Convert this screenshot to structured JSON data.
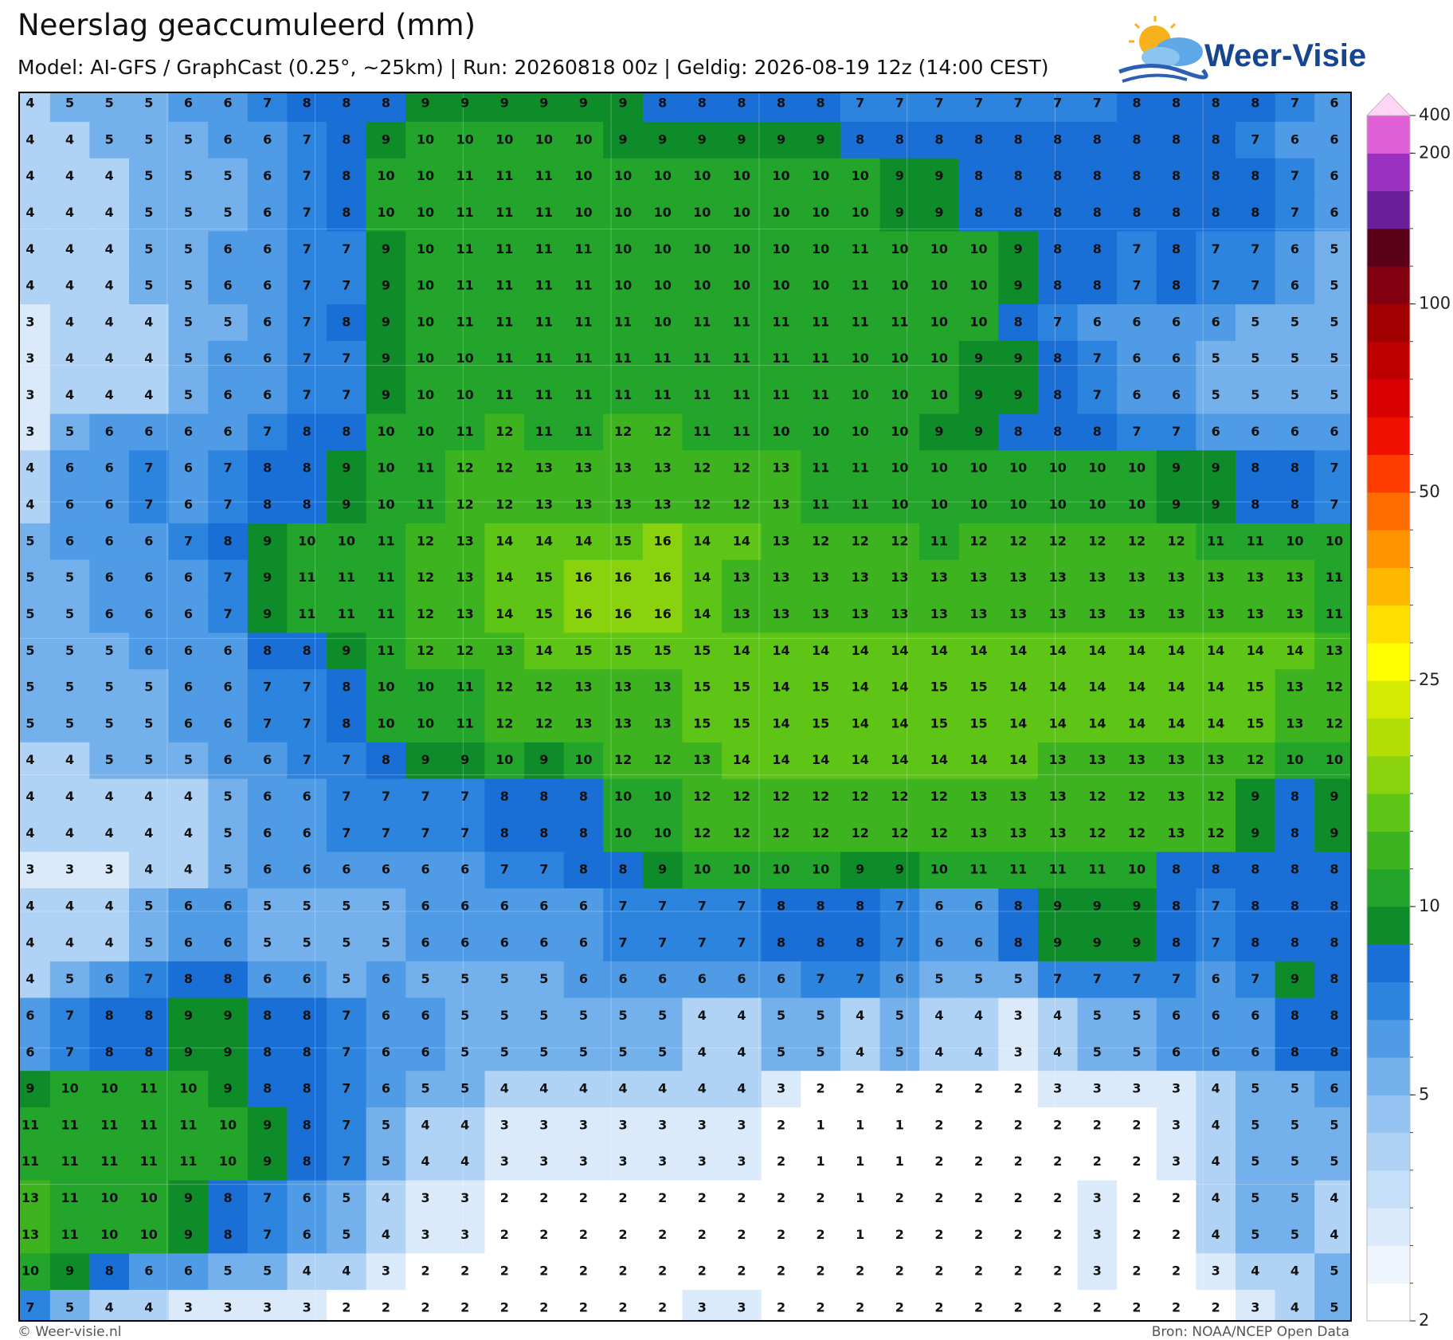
{
  "header": {
    "title": "Neerslag geaccumuleerd (mm)",
    "subtitle": "Model: AI-GFS / GraphCast (0.25°, ~25km)  |  Run: 20260818 00z  |  Geldig: 2026-08-19 12z (14:00 CEST)",
    "logo": "Weer-Visie"
  },
  "map": {
    "grid": [
      [
        4,
        5,
        5,
        5,
        6,
        6,
        7,
        8,
        8,
        8,
        9,
        9,
        9,
        9,
        9,
        9,
        8,
        8,
        8,
        8,
        8,
        7,
        7,
        7,
        7,
        7,
        7,
        7,
        8,
        8,
        8,
        8,
        7,
        6
      ],
      [
        4,
        4,
        5,
        5,
        5,
        6,
        6,
        7,
        8,
        9,
        10,
        10,
        10,
        10,
        10,
        9,
        9,
        9,
        9,
        9,
        9,
        8,
        8,
        8,
        8,
        8,
        8,
        8,
        8,
        8,
        8,
        7,
        6,
        6
      ],
      [
        4,
        4,
        4,
        5,
        5,
        5,
        6,
        7,
        8,
        10,
        10,
        11,
        11,
        11,
        10,
        10,
        10,
        10,
        10,
        10,
        10,
        10,
        9,
        9,
        8,
        8,
        8,
        8,
        8,
        8,
        8,
        8,
        7,
        6
      ],
      [
        4,
        4,
        4,
        5,
        5,
        5,
        6,
        7,
        8,
        10,
        10,
        11,
        11,
        11,
        10,
        10,
        10,
        10,
        10,
        10,
        10,
        10,
        9,
        9,
        8,
        8,
        8,
        8,
        8,
        8,
        8,
        8,
        7,
        6
      ],
      [
        4,
        4,
        4,
        5,
        5,
        6,
        6,
        7,
        7,
        9,
        10,
        11,
        11,
        11,
        11,
        10,
        10,
        10,
        10,
        10,
        10,
        11,
        10,
        10,
        10,
        9,
        8,
        8,
        7,
        8,
        7,
        7,
        6,
        5
      ],
      [
        4,
        4,
        4,
        5,
        5,
        6,
        6,
        7,
        7,
        9,
        10,
        11,
        11,
        11,
        11,
        10,
        10,
        10,
        10,
        10,
        10,
        11,
        10,
        10,
        10,
        9,
        8,
        8,
        7,
        8,
        7,
        7,
        6,
        5
      ],
      [
        3,
        4,
        4,
        4,
        5,
        5,
        6,
        7,
        8,
        9,
        10,
        11,
        11,
        11,
        11,
        11,
        10,
        11,
        11,
        11,
        11,
        11,
        11,
        10,
        10,
        8,
        7,
        6,
        6,
        6,
        6,
        5,
        5,
        5
      ],
      [
        3,
        4,
        4,
        4,
        5,
        6,
        6,
        7,
        7,
        9,
        10,
        10,
        11,
        11,
        11,
        11,
        11,
        11,
        11,
        11,
        11,
        10,
        10,
        10,
        9,
        9,
        8,
        7,
        6,
        6,
        5,
        5,
        5,
        5
      ],
      [
        3,
        4,
        4,
        4,
        5,
        6,
        6,
        7,
        7,
        9,
        10,
        10,
        11,
        11,
        11,
        11,
        11,
        11,
        11,
        11,
        11,
        10,
        10,
        10,
        9,
        9,
        8,
        7,
        6,
        6,
        5,
        5,
        5,
        5
      ],
      [
        3,
        5,
        6,
        6,
        6,
        6,
        7,
        8,
        8,
        10,
        10,
        11,
        12,
        11,
        11,
        12,
        12,
        11,
        11,
        10,
        10,
        10,
        10,
        9,
        9,
        8,
        8,
        8,
        7,
        7,
        6,
        6,
        6,
        6
      ],
      [
        4,
        6,
        6,
        7,
        6,
        7,
        8,
        8,
        9,
        10,
        11,
        12,
        12,
        13,
        13,
        13,
        13,
        12,
        12,
        13,
        11,
        11,
        10,
        10,
        10,
        10,
        10,
        10,
        10,
        9,
        9,
        8,
        8,
        7
      ],
      [
        4,
        6,
        6,
        7,
        6,
        7,
        8,
        8,
        9,
        10,
        11,
        12,
        12,
        13,
        13,
        13,
        13,
        12,
        12,
        13,
        11,
        11,
        10,
        10,
        10,
        10,
        10,
        10,
        10,
        9,
        9,
        8,
        8,
        7
      ],
      [
        5,
        6,
        6,
        6,
        7,
        8,
        9,
        10,
        10,
        11,
        12,
        13,
        14,
        14,
        14,
        15,
        16,
        14,
        14,
        13,
        12,
        12,
        12,
        11,
        12,
        12,
        12,
        12,
        12,
        12,
        11,
        11,
        10,
        10
      ],
      [
        5,
        5,
        6,
        6,
        6,
        7,
        9,
        11,
        11,
        11,
        12,
        13,
        14,
        15,
        16,
        16,
        16,
        14,
        13,
        13,
        13,
        13,
        13,
        13,
        13,
        13,
        13,
        13,
        13,
        13,
        13,
        13,
        13,
        11
      ],
      [
        5,
        5,
        6,
        6,
        6,
        7,
        9,
        11,
        11,
        11,
        12,
        13,
        14,
        15,
        16,
        16,
        16,
        14,
        13,
        13,
        13,
        13,
        13,
        13,
        13,
        13,
        13,
        13,
        13,
        13,
        13,
        13,
        13,
        11
      ],
      [
        5,
        5,
        5,
        6,
        6,
        6,
        8,
        8,
        9,
        11,
        12,
        12,
        13,
        14,
        15,
        15,
        15,
        15,
        14,
        14,
        14,
        14,
        14,
        14,
        14,
        14,
        14,
        14,
        14,
        14,
        14,
        14,
        14,
        13
      ],
      [
        5,
        5,
        5,
        5,
        6,
        6,
        7,
        7,
        8,
        10,
        10,
        11,
        12,
        12,
        13,
        13,
        13,
        15,
        15,
        14,
        15,
        14,
        14,
        15,
        15,
        14,
        14,
        14,
        14,
        14,
        14,
        15,
        13,
        12
      ],
      [
        5,
        5,
        5,
        5,
        6,
        6,
        7,
        7,
        8,
        10,
        10,
        11,
        12,
        12,
        13,
        13,
        13,
        15,
        15,
        14,
        15,
        14,
        14,
        15,
        15,
        14,
        14,
        14,
        14,
        14,
        14,
        15,
        13,
        12
      ],
      [
        4,
        4,
        5,
        5,
        5,
        6,
        6,
        7,
        7,
        8,
        9,
        9,
        10,
        9,
        10,
        12,
        12,
        13,
        14,
        14,
        14,
        14,
        14,
        14,
        14,
        14,
        13,
        13,
        13,
        13,
        13,
        12,
        10,
        10
      ],
      [
        4,
        4,
        4,
        4,
        4,
        5,
        6,
        6,
        7,
        7,
        7,
        7,
        8,
        8,
        8,
        10,
        10,
        12,
        12,
        12,
        12,
        12,
        12,
        12,
        13,
        13,
        13,
        12,
        12,
        13,
        12,
        9,
        8,
        9
      ],
      [
        4,
        4,
        4,
        4,
        4,
        5,
        6,
        6,
        7,
        7,
        7,
        7,
        8,
        8,
        8,
        10,
        10,
        12,
        12,
        12,
        12,
        12,
        12,
        12,
        13,
        13,
        13,
        12,
        12,
        13,
        12,
        9,
        8,
        9
      ],
      [
        3,
        3,
        3,
        4,
        4,
        5,
        6,
        6,
        6,
        6,
        6,
        6,
        7,
        7,
        8,
        8,
        9,
        10,
        10,
        10,
        10,
        9,
        9,
        10,
        11,
        11,
        11,
        11,
        10,
        8,
        8,
        8,
        8,
        8
      ],
      [
        4,
        4,
        4,
        5,
        6,
        6,
        5,
        5,
        5,
        5,
        6,
        6,
        6,
        6,
        6,
        7,
        7,
        7,
        7,
        8,
        8,
        8,
        7,
        6,
        6,
        8,
        9,
        9,
        9,
        8,
        7,
        8,
        8,
        8
      ],
      [
        4,
        4,
        4,
        5,
        6,
        6,
        5,
        5,
        5,
        5,
        6,
        6,
        6,
        6,
        6,
        7,
        7,
        7,
        7,
        8,
        8,
        8,
        7,
        6,
        6,
        8,
        9,
        9,
        9,
        8,
        7,
        8,
        8,
        8
      ],
      [
        4,
        5,
        6,
        7,
        8,
        8,
        6,
        6,
        5,
        6,
        5,
        5,
        5,
        5,
        6,
        6,
        6,
        6,
        6,
        6,
        7,
        7,
        6,
        5,
        5,
        5,
        7,
        7,
        7,
        7,
        6,
        7,
        9,
        8
      ],
      [
        6,
        7,
        8,
        8,
        9,
        9,
        8,
        8,
        7,
        6,
        6,
        5,
        5,
        5,
        5,
        5,
        5,
        4,
        4,
        5,
        5,
        4,
        5,
        4,
        4,
        3,
        4,
        5,
        5,
        6,
        6,
        6,
        8,
        8
      ],
      [
        6,
        7,
        8,
        8,
        9,
        9,
        8,
        8,
        7,
        6,
        6,
        5,
        5,
        5,
        5,
        5,
        5,
        4,
        4,
        5,
        5,
        4,
        5,
        4,
        4,
        3,
        4,
        5,
        5,
        6,
        6,
        6,
        8,
        8
      ],
      [
        9,
        10,
        10,
        11,
        10,
        9,
        8,
        8,
        7,
        6,
        5,
        5,
        4,
        4,
        4,
        4,
        4,
        4,
        4,
        3,
        2,
        2,
        2,
        2,
        2,
        2,
        3,
        3,
        3,
        3,
        4,
        5,
        5,
        6
      ],
      [
        11,
        11,
        11,
        11,
        11,
        10,
        9,
        8,
        7,
        5,
        4,
        4,
        3,
        3,
        3,
        3,
        3,
        3,
        3,
        2,
        1,
        1,
        1,
        2,
        2,
        2,
        2,
        2,
        2,
        3,
        4,
        5,
        5,
        5
      ],
      [
        11,
        11,
        11,
        11,
        11,
        10,
        9,
        8,
        7,
        5,
        4,
        4,
        3,
        3,
        3,
        3,
        3,
        3,
        3,
        2,
        1,
        1,
        1,
        2,
        2,
        2,
        2,
        2,
        2,
        3,
        4,
        5,
        5,
        5
      ],
      [
        13,
        11,
        10,
        10,
        9,
        8,
        7,
        6,
        5,
        4,
        3,
        3,
        2,
        2,
        2,
        2,
        2,
        2,
        2,
        2,
        2,
        1,
        2,
        2,
        2,
        2,
        2,
        3,
        2,
        2,
        4,
        5,
        5,
        4
      ],
      [
        13,
        11,
        10,
        10,
        9,
        8,
        7,
        6,
        5,
        4,
        3,
        3,
        2,
        2,
        2,
        2,
        2,
        2,
        2,
        2,
        2,
        1,
        2,
        2,
        2,
        2,
        2,
        3,
        2,
        2,
        4,
        5,
        5,
        4
      ],
      [
        10,
        9,
        8,
        6,
        6,
        5,
        5,
        4,
        4,
        3,
        2,
        2,
        2,
        2,
        2,
        2,
        2,
        2,
        2,
        2,
        2,
        2,
        2,
        2,
        2,
        2,
        2,
        3,
        2,
        2,
        3,
        4,
        4,
        5
      ],
      [
        7,
        5,
        4,
        4,
        3,
        3,
        3,
        3,
        2,
        2,
        2,
        2,
        2,
        2,
        2,
        2,
        2,
        3,
        3,
        2,
        2,
        2,
        2,
        2,
        2,
        2,
        2,
        2,
        2,
        2,
        2,
        3,
        4,
        5
      ]
    ]
  },
  "colorbar": {
    "levels": [
      2,
      2.5,
      3,
      3.5,
      4,
      4.5,
      5,
      6,
      7,
      8,
      9,
      10,
      12,
      14,
      16,
      18,
      20,
      25,
      30,
      35,
      40,
      45,
      50,
      60,
      70,
      80,
      90,
      100,
      125,
      150,
      175,
      200,
      400
    ],
    "colors": [
      "#ffffff",
      "#eef5fd",
      "#dbeafb",
      "#c6dff8",
      "#afd2f5",
      "#94c3f1",
      "#74b0ec",
      "#4f9be6",
      "#2d84de",
      "#1a6fd6",
      "#0f8c2a",
      "#22a52a",
      "#3db41f",
      "#5ec416",
      "#8ad20e",
      "#b2de06",
      "#d4ea00",
      "#ffff00",
      "#ffdf00",
      "#ffb800",
      "#ff9400",
      "#ff6d00",
      "#ff3c00",
      "#f01000",
      "#d80000",
      "#bf0000",
      "#a00000",
      "#800010",
      "#5a0018",
      "#6b1e9a",
      "#9a30c0",
      "#e060d8",
      "#ffd4f4"
    ],
    "ticks": [
      2,
      5,
      10,
      25,
      50,
      100,
      200,
      400
    ]
  },
  "footer": {
    "left": "© Weer-visie.nl",
    "right": "Bron: NOAA/NCEP Open Data"
  }
}
